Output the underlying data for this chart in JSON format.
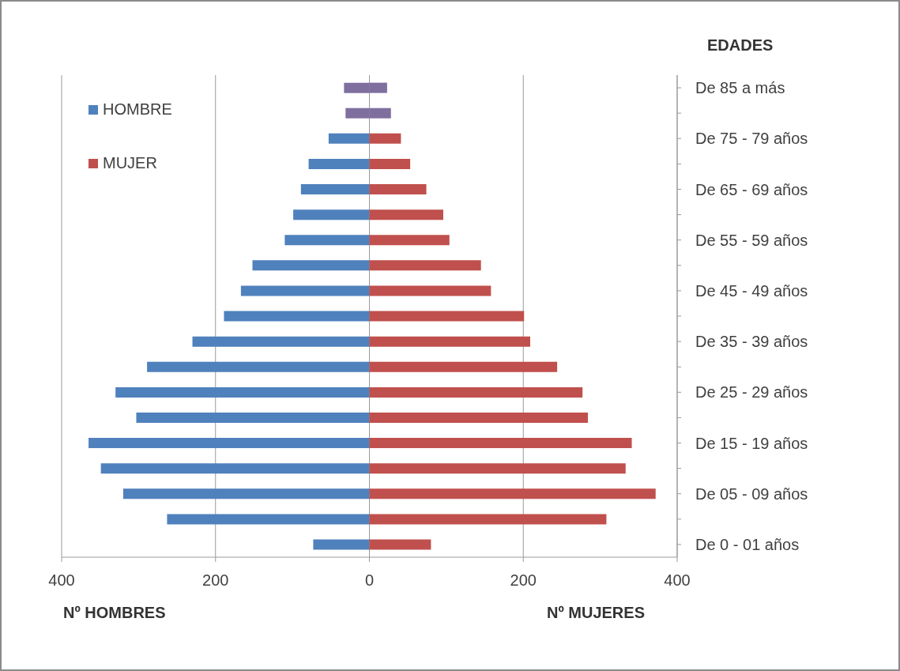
{
  "chart_data": {
    "type": "bar",
    "orientation": "horizontal",
    "stacked": true,
    "ylabel": "EDADES",
    "categories": [
      "De 85 a más",
      null,
      "De 75 - 79 años",
      null,
      "De 65 - 69 años",
      null,
      "De 55 - 59 años",
      null,
      "De 45 - 49 años",
      null,
      "De 35 - 39 años",
      null,
      "De 25 - 29 años",
      null,
      "De 15 - 19 años",
      null,
      "De 05 - 09 años",
      null,
      "De 0 - 01 años"
    ],
    "series": [
      {
        "name": "HOMBRE",
        "color": "#4f81bd",
        "colors": [
          "#7f6f9f",
          "#7f6f9f",
          "#4f81bd",
          "#4f81bd",
          "#4f81bd",
          "#4f81bd",
          "#4f81bd",
          "#4f81bd",
          "#4f81bd",
          "#4f81bd",
          "#4f81bd",
          "#4f81bd",
          "#4f81bd",
          "#4f81bd",
          "#4f81bd",
          "#4f81bd",
          "#4f81bd",
          "#4f81bd",
          "#4f81bd"
        ],
        "values": [
          -33,
          -31,
          -53,
          -79,
          -89,
          -99,
          -110,
          -152,
          -167,
          -189,
          -230,
          -289,
          -330,
          -303,
          -365,
          -349,
          -320,
          -263,
          -73
        ]
      },
      {
        "name": "MUJER",
        "color": "#c0504d",
        "colors": [
          "#7f6f9f",
          "#7f6f9f",
          "#c0504d",
          "#c0504d",
          "#c0504d",
          "#c0504d",
          "#c0504d",
          "#c0504d",
          "#c0504d",
          "#c0504d",
          "#c0504d",
          "#c0504d",
          "#c0504d",
          "#c0504d",
          "#c0504d",
          "#c0504d",
          "#c0504d",
          "#c0504d",
          "#c0504d"
        ],
        "values": [
          23,
          28,
          41,
          53,
          74,
          96,
          104,
          145,
          158,
          201,
          209,
          244,
          277,
          284,
          341,
          333,
          372,
          308,
          80
        ]
      }
    ],
    "xlim": [
      -400,
      400
    ],
    "xticks": [
      {
        "value": -400,
        "label": "400"
      },
      {
        "value": -200,
        "label": "200"
      },
      0,
      200,
      400
    ],
    "grid": "x",
    "legend": "top left",
    "annotations": [
      "Nº HOMBRES",
      "Nº MUJERES"
    ]
  }
}
